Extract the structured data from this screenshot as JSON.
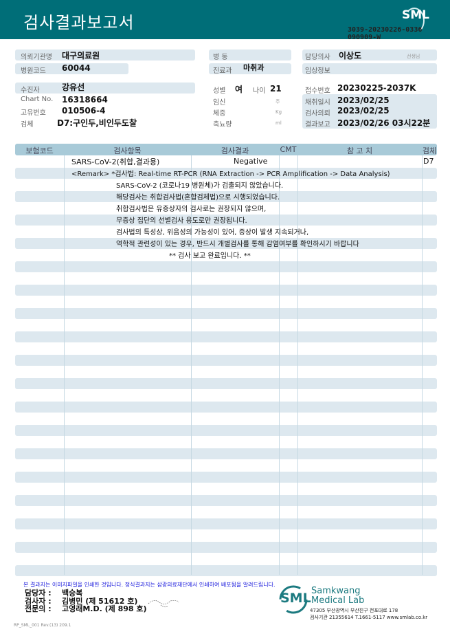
{
  "header": {
    "title": "검사결과보고서",
    "logo": "SML",
    "doc_id_1": "3039-20230226-0336",
    "doc_id_2": "090909-W"
  },
  "info": {
    "institution_label": "의뢰기관명",
    "institution": "대구의료원",
    "hospital_code_label": "병원코드",
    "hospital_code": "60044",
    "ward_label": "병  동",
    "ward": "",
    "department_label": "진료과",
    "department": "마취과",
    "doctor_label": "담당의사",
    "doctor": "이상도",
    "doctor_suffix": "선생님",
    "clinical_label": "임상정보",
    "patient_label": "수진자",
    "patient": "강유선",
    "chart_label": "Chart No.",
    "chart": "16318664",
    "id_label": "고유번호",
    "id": "010506-4",
    "specimen_label": "검체",
    "specimen": "D7:구인두,비인두도찰",
    "sex_label": "성별",
    "sex": "여",
    "age_label": "나이",
    "age": "21",
    "pregnancy_label": "임신",
    "pregnancy_unit": "주",
    "weight_label": "체중",
    "weight_unit": "Kg",
    "urine_label": "축뇨량",
    "urine_unit": "ml",
    "receipt_label": "접수번호",
    "receipt": "20230225-2037K",
    "collected_label": "채취일시",
    "collected": "2023/02/25",
    "requested_label": "검사의뢰",
    "requested": "2023/02/25",
    "reported_label": "결과보고",
    "reported": "2023/02/26 03시22분"
  },
  "table": {
    "headers": [
      "보험코드",
      "검사항목",
      "검사결과",
      "CMT",
      "참 고 치",
      "검체"
    ],
    "test": {
      "name": "SARS-CoV-2(취합,결과용)",
      "result": "Negative",
      "specimen": "D7"
    },
    "remark_method": "<Remark> *검사법: Real-time RT-PCR (RNA Extraction -> PCR Amplification -> Data Analysis)",
    "remarks": [
      "SARS-CoV-2 (코로나19 병원체)가 검출되지 않았습니다.",
      "해당검사는 취합검사법(혼합검체법)으로 시행되었습니다.",
      "취합검사법은 유증상자의 검사로는 권장되지 않으며,",
      "무증상 집단의 선별검사 용도로만 권장됩니다.",
      "검사법의 특성상, 위음성의 가능성이 있어, 증상이 발생 지속되거나,",
      "역학적 관련성이 있는 경우, 반드시 개별검사를 통해 감염여부를 확인하시기 바랍니다"
    ],
    "end": "** 검사 보고 완료입니다. **"
  },
  "footer": {
    "notice": "본 결과지는 이미지파일을 인쇄한 것입니다. 정식결과지는 삼광의료재단에서 인쇄하여 배포됨을 알려드립니다.",
    "manager_label": "담당자 :",
    "manager": "백승복",
    "tester_label": "검사자 :",
    "tester": "김병민 (제 51612 호)",
    "specialist_label": "전문의 :",
    "specialist": "고영래M.D. (제 898 호)",
    "lab_logo": "SML",
    "lab_name_1": "Samkwang",
    "lab_name_2": "Medical Lab",
    "address": "47305 부산광역시 부산진구 전포대로 178",
    "contact": "검사기관 21355614 T.1661-5117 www.smlab.co.kr",
    "form_code": "RP_SML_001 Rev.(13) 209.1"
  }
}
